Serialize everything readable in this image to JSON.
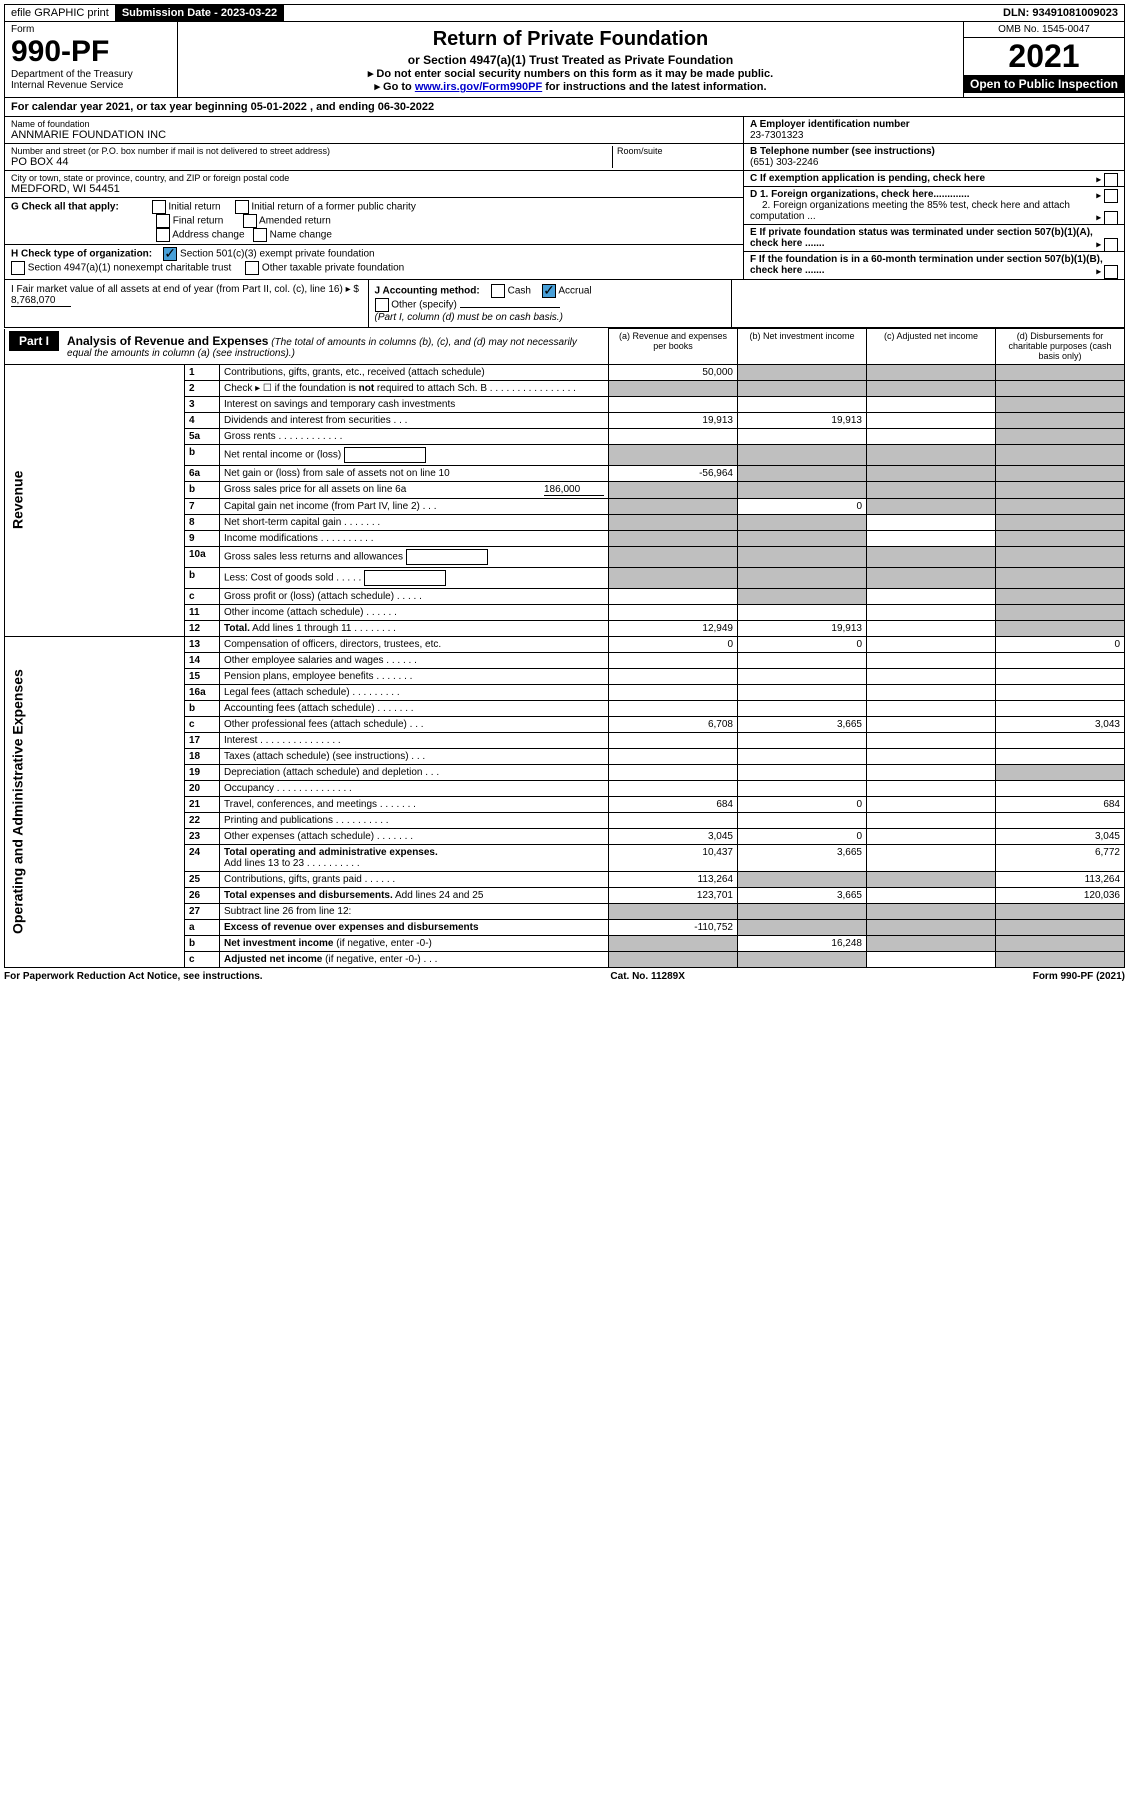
{
  "topbar": {
    "efile": "efile GRAPHIC print",
    "sub_label": "Submission Date - 2023-03-22",
    "dln": "DLN: 93491081009023"
  },
  "header": {
    "form_word": "Form",
    "form_no": "990-PF",
    "dept": "Department of the Treasury",
    "irs": "Internal Revenue Service",
    "title": "Return of Private Foundation",
    "subtitle": "or Section 4947(a)(1) Trust Treated as Private Foundation",
    "note1": "▸ Do not enter social security numbers on this form as it may be made public.",
    "note2_pre": "▸ Go to ",
    "note2_link": "www.irs.gov/Form990PF",
    "note2_post": " for instructions and the latest information.",
    "omb": "OMB No. 1545-0047",
    "year": "2021",
    "open": "Open to Public Inspection"
  },
  "calyear": "For calendar year 2021, or tax year beginning 05-01-2022              , and ending 06-30-2022",
  "info": {
    "name_lab": "Name of foundation",
    "name": "ANNMARIE FOUNDATION INC",
    "addr_lab": "Number and street (or P.O. box number if mail is not delivered to street address)",
    "addr": "PO BOX 44",
    "room_lab": "Room/suite",
    "room": "",
    "city_lab": "City or town, state or province, country, and ZIP or foreign postal code",
    "city": "MEDFORD, WI  54451",
    "a_lab": "A Employer identification number",
    "a_val": "23-7301323",
    "b_lab": "B Telephone number (see instructions)",
    "b_val": "(651) 303-2246",
    "c_lab": "C If exemption application is pending, check here",
    "d1_lab": "D 1. Foreign organizations, check here.............",
    "d2_lab": "2. Foreign organizations meeting the 85% test, check here and attach computation ...",
    "e_lab": "E If private foundation status was terminated under section 507(b)(1)(A), check here .......",
    "f_lab": "F If the foundation is in a 60-month termination under section 507(b)(1)(B), check here ......."
  },
  "g": {
    "label": "G Check all that apply:",
    "o1": "Initial return",
    "o2": "Initial return of a former public charity",
    "o3": "Final return",
    "o4": "Amended return",
    "o5": "Address change",
    "o6": "Name change"
  },
  "h": {
    "label": "H Check type of organization:",
    "o1": "Section 501(c)(3) exempt private foundation",
    "o2": "Section 4947(a)(1) nonexempt charitable trust",
    "o3": "Other taxable private foundation"
  },
  "i": {
    "label": "I Fair market value of all assets at end of year (from Part II, col. (c), line 16) ▸ $",
    "val": "8,768,070"
  },
  "j": {
    "label": "J Accounting method:",
    "cash": "Cash",
    "accrual": "Accrual",
    "other": "Other (specify)",
    "note": "(Part I, column (d) must be on cash basis.)"
  },
  "part1": {
    "label": "Part I",
    "title": "Analysis of Revenue and Expenses",
    "desc": "(The total of amounts in columns (b), (c), and (d) may not necessarily equal the amounts in column (a) (see instructions).)",
    "col_a": "(a) Revenue and expenses per books",
    "col_b": "(b) Net investment income",
    "col_c": "(c) Adjusted net income",
    "col_d": "(d) Disbursements for charitable purposes (cash basis only)"
  },
  "rot": {
    "rev": "Revenue",
    "exp": "Operating and Administrative Expenses"
  },
  "rows": [
    {
      "n": "1",
      "d": "",
      "a": "50,000",
      "b": "",
      "c": "",
      "ga": false,
      "gb": true,
      "gc": true,
      "gd": true
    },
    {
      "n": "2",
      "d": "",
      "a": "",
      "b": "",
      "c": "",
      "ga": true,
      "gb": true,
      "gc": true,
      "gd": true
    },
    {
      "n": "3",
      "d": "",
      "a": "",
      "b": "",
      "c": "",
      "ga": false,
      "gb": false,
      "gc": false,
      "gd": true
    },
    {
      "n": "4",
      "d": "",
      "a": "19,913",
      "b": "19,913",
      "c": "",
      "ga": false,
      "gb": false,
      "gc": false,
      "gd": true
    },
    {
      "n": "5a",
      "d": "",
      "a": "",
      "b": "",
      "c": "",
      "ga": false,
      "gb": false,
      "gc": false,
      "gd": true
    },
    {
      "n": "b",
      "d": "",
      "a": "",
      "b": "",
      "c": "",
      "ga": true,
      "gb": true,
      "gc": true,
      "gd": true,
      "box": true
    },
    {
      "n": "6a",
      "d": "",
      "a": "-56,964",
      "b": "",
      "c": "",
      "ga": false,
      "gb": true,
      "gc": true,
      "gd": true
    },
    {
      "n": "b",
      "d": "",
      "a": "",
      "b": "",
      "c": "",
      "ga": true,
      "gb": true,
      "gc": true,
      "gd": true,
      "inline": "186,000"
    },
    {
      "n": "7",
      "d": "",
      "a": "",
      "b": "0",
      "c": "",
      "ga": true,
      "gb": false,
      "gc": true,
      "gd": true
    },
    {
      "n": "8",
      "d": "",
      "a": "",
      "b": "",
      "c": "",
      "ga": true,
      "gb": true,
      "gc": false,
      "gd": true
    },
    {
      "n": "9",
      "d": "",
      "a": "",
      "b": "",
      "c": "",
      "ga": true,
      "gb": true,
      "gc": false,
      "gd": true
    },
    {
      "n": "10a",
      "d": "",
      "a": "",
      "b": "",
      "c": "",
      "ga": true,
      "gb": true,
      "gc": true,
      "gd": true,
      "box": true
    },
    {
      "n": "b",
      "d": "",
      "a": "",
      "b": "",
      "c": "",
      "ga": true,
      "gb": true,
      "gc": true,
      "gd": true,
      "box": true
    },
    {
      "n": "c",
      "d": "",
      "a": "",
      "b": "",
      "c": "",
      "ga": false,
      "gb": true,
      "gc": false,
      "gd": true
    },
    {
      "n": "11",
      "d": "",
      "a": "",
      "b": "",
      "c": "",
      "ga": false,
      "gb": false,
      "gc": false,
      "gd": true
    },
    {
      "n": "12",
      "d": "",
      "a": "12,949",
      "b": "19,913",
      "c": "",
      "ga": false,
      "gb": false,
      "gc": false,
      "gd": true,
      "bold": true
    },
    {
      "n": "13",
      "d": "0",
      "a": "0",
      "b": "0",
      "c": "",
      "ga": false,
      "gb": false,
      "gc": false,
      "gd": false
    },
    {
      "n": "14",
      "d": "",
      "a": "",
      "b": "",
      "c": "",
      "ga": false,
      "gb": false,
      "gc": false,
      "gd": false
    },
    {
      "n": "15",
      "d": "",
      "a": "",
      "b": "",
      "c": "",
      "ga": false,
      "gb": false,
      "gc": false,
      "gd": false
    },
    {
      "n": "16a",
      "d": "",
      "a": "",
      "b": "",
      "c": "",
      "ga": false,
      "gb": false,
      "gc": false,
      "gd": false
    },
    {
      "n": "b",
      "d": "",
      "a": "",
      "b": "",
      "c": "",
      "ga": false,
      "gb": false,
      "gc": false,
      "gd": false
    },
    {
      "n": "c",
      "d": "3,043",
      "a": "6,708",
      "b": "3,665",
      "c": "",
      "ga": false,
      "gb": false,
      "gc": false,
      "gd": false
    },
    {
      "n": "17",
      "d": "",
      "a": "",
      "b": "",
      "c": "",
      "ga": false,
      "gb": false,
      "gc": false,
      "gd": false
    },
    {
      "n": "18",
      "d": "",
      "a": "",
      "b": "",
      "c": "",
      "ga": false,
      "gb": false,
      "gc": false,
      "gd": false
    },
    {
      "n": "19",
      "d": "",
      "a": "",
      "b": "",
      "c": "",
      "ga": false,
      "gb": false,
      "gc": false,
      "gd": true
    },
    {
      "n": "20",
      "d": "",
      "a": "",
      "b": "",
      "c": "",
      "ga": false,
      "gb": false,
      "gc": false,
      "gd": false
    },
    {
      "n": "21",
      "d": "684",
      "a": "684",
      "b": "0",
      "c": "",
      "ga": false,
      "gb": false,
      "gc": false,
      "gd": false
    },
    {
      "n": "22",
      "d": "",
      "a": "",
      "b": "",
      "c": "",
      "ga": false,
      "gb": false,
      "gc": false,
      "gd": false
    },
    {
      "n": "23",
      "d": "3,045",
      "a": "3,045",
      "b": "0",
      "c": "",
      "ga": false,
      "gb": false,
      "gc": false,
      "gd": false
    },
    {
      "n": "24",
      "d": "6,772",
      "a": "10,437",
      "b": "3,665",
      "c": "",
      "ga": false,
      "gb": false,
      "gc": false,
      "gd": false,
      "bold": true
    },
    {
      "n": "25",
      "d": "113,264",
      "a": "113,264",
      "b": "",
      "c": "",
      "ga": false,
      "gb": true,
      "gc": true,
      "gd": false
    },
    {
      "n": "26",
      "d": "120,036",
      "a": "123,701",
      "b": "3,665",
      "c": "",
      "ga": false,
      "gb": false,
      "gc": false,
      "gd": false,
      "bold": true
    },
    {
      "n": "27",
      "d": "",
      "a": "",
      "b": "",
      "c": "",
      "ga": true,
      "gb": true,
      "gc": true,
      "gd": true
    },
    {
      "n": "a",
      "d": "",
      "a": "-110,752",
      "b": "",
      "c": "",
      "ga": false,
      "gb": true,
      "gc": true,
      "gd": true,
      "bold": true
    },
    {
      "n": "b",
      "d": "",
      "a": "",
      "b": "16,248",
      "c": "",
      "ga": true,
      "gb": false,
      "gc": true,
      "gd": true,
      "bold": true
    },
    {
      "n": "c",
      "d": "",
      "a": "",
      "b": "",
      "c": "",
      "ga": true,
      "gb": true,
      "gc": false,
      "gd": true,
      "bold": true
    }
  ],
  "footer": {
    "left": "For Paperwork Reduction Act Notice, see instructions.",
    "mid": "Cat. No. 11289X",
    "right": "Form 990-PF (2021)"
  }
}
